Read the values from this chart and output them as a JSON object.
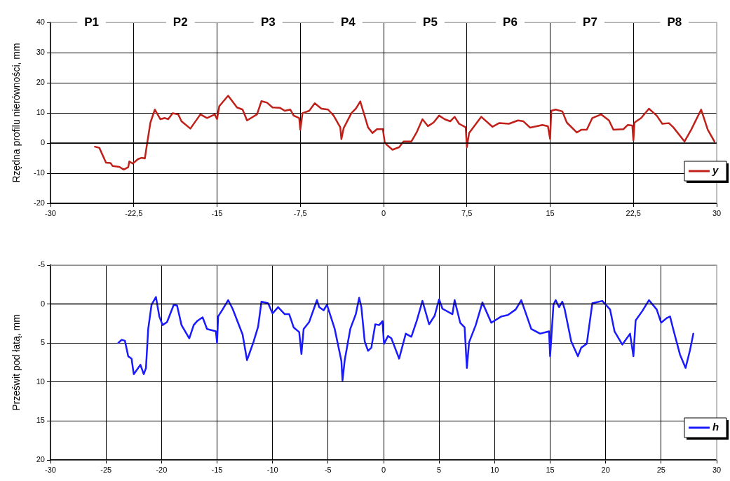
{
  "chart_data": [
    {
      "type": "line",
      "ylabel": "Rzędna profilu nierówności, mm",
      "xlim": [
        -30,
        30
      ],
      "ylim": [
        -20,
        40
      ],
      "xticks": [
        -30,
        {
          "value": -22.5,
          "label": "-22,5"
        },
        -15,
        {
          "value": -7.5,
          "label": "-7,5"
        },
        0,
        {
          "value": 7.5,
          "label": "7,5"
        },
        15,
        {
          "value": 22.5,
          "label": "22,5"
        },
        30
      ],
      "yticks": [
        -20,
        -10,
        0,
        10,
        20,
        30,
        40
      ],
      "grid": true,
      "legend": "bottom right",
      "marker": "none",
      "line_style": "solid",
      "ref_lines": [
        {
          "axis": "y",
          "value": 0,
          "color": "#000000"
        }
      ],
      "annotations": [
        {
          "text": "P1",
          "x": -26.3,
          "y": 40
        },
        {
          "text": "P2",
          "x": -18.3,
          "y": 40
        },
        {
          "text": "P3",
          "x": -10.4,
          "y": 40
        },
        {
          "text": "P4",
          "x": -3.2,
          "y": 40
        },
        {
          "text": "P5",
          "x": 4.2,
          "y": 40
        },
        {
          "text": "P6",
          "x": 11.4,
          "y": 40
        },
        {
          "text": "P7",
          "x": 18.6,
          "y": 40
        },
        {
          "text": "P8",
          "x": 26.2,
          "y": 40
        }
      ],
      "series": [
        {
          "name": "y",
          "color": "#c0201a",
          "x": [
            -26.0,
            -25.6,
            -25.0,
            -24.6,
            -24.4,
            -23.8,
            -23.4,
            -23.0,
            -22.9,
            -22.6,
            -22.1,
            -21.8,
            -21.5,
            -21.3,
            -21.0,
            -20.6,
            -20.1,
            -19.7,
            -19.4,
            -19.0,
            -18.5,
            -18.2,
            -17.4,
            -16.5,
            -15.9,
            -15.2,
            -15.0,
            -14.8,
            -14.0,
            -13.2,
            -12.7,
            -12.3,
            -11.4,
            -11.0,
            -10.5,
            -10.0,
            -9.35,
            -8.9,
            -8.4,
            -8.1,
            -7.6,
            -7.5,
            -7.3,
            -6.7,
            -6.2,
            -5.6,
            -5.0,
            -4.5,
            -3.9,
            -3.8,
            -3.6,
            -2.9,
            -2.5,
            -2.1,
            -1.4,
            -1.0,
            -0.6,
            -0.06,
            0.1,
            0.3,
            0.8,
            1.4,
            1.8,
            2.5,
            3.0,
            3.5,
            4.0,
            4.5,
            5.0,
            5.5,
            6.0,
            6.4,
            6.8,
            7.4,
            7.5,
            7.7,
            8.8,
            9.8,
            10.4,
            11.3,
            12.1,
            12.6,
            13.2,
            13.8,
            14.3,
            14.8,
            15.0,
            15.1,
            15.5,
            16.1,
            16.5,
            17.4,
            17.8,
            18.3,
            18.8,
            19.6,
            20.3,
            20.7,
            21.6,
            22.0,
            22.4,
            22.5,
            22.6,
            23.2,
            23.9,
            24.6,
            25.1,
            25.7,
            26.1,
            27.1,
            27.7,
            28.6,
            29.2,
            29.8
          ],
          "values": [
            -1.2,
            -1.6,
            -6.5,
            -6.6,
            -7.6,
            -7.9,
            -8.8,
            -8.0,
            -6.1,
            -6.8,
            -5.3,
            -4.9,
            -5.1,
            -0.2,
            6.8,
            11.1,
            7.9,
            8.3,
            7.9,
            9.9,
            9.5,
            7.2,
            4.8,
            9.5,
            8.3,
            9.5,
            7.9,
            12.2,
            15.7,
            11.8,
            11.1,
            7.5,
            9.5,
            13.9,
            13.4,
            11.8,
            11.7,
            10.7,
            11.1,
            9.1,
            8.3,
            4.4,
            9.9,
            10.7,
            13.2,
            11.4,
            11.1,
            9.1,
            5.2,
            1.3,
            4.9,
            9.9,
            11.4,
            13.8,
            5.2,
            3.3,
            4.6,
            4.6,
            0.2,
            -0.6,
            -2.2,
            -1.4,
            0.5,
            0.5,
            3.7,
            7.9,
            5.6,
            6.8,
            9.1,
            7.9,
            7.2,
            8.7,
            6.4,
            5.2,
            -1.4,
            3.3,
            8.7,
            5.4,
            6.6,
            6.4,
            7.5,
            7.2,
            5.1,
            5.6,
            6.0,
            5.6,
            1.3,
            10.7,
            11.1,
            10.5,
            6.8,
            3.5,
            4.4,
            4.4,
            8.3,
            9.5,
            7.5,
            4.4,
            4.6,
            6.0,
            5.8,
            0.9,
            6.8,
            8.3,
            11.4,
            9.1,
            6.4,
            6.6,
            5.2,
            0.5,
            4.4,
            11.1,
            4.4,
            0.5
          ]
        }
      ]
    },
    {
      "type": "line",
      "ylabel": "Prześwit pod łatą, mm",
      "xlim": [
        -30,
        30
      ],
      "ylim": [
        20,
        -5
      ],
      "xticks": [
        -30,
        -25,
        -20,
        -15,
        -10,
        -5,
        0,
        5,
        10,
        15,
        20,
        25,
        30
      ],
      "yticks": [
        -5,
        0,
        5,
        10,
        15,
        20
      ],
      "grid": true,
      "legend": "bottom right",
      "marker": "none",
      "line_style": "solid",
      "ref_lines": [
        {
          "axis": "y",
          "value": 0,
          "color": "#000000"
        }
      ],
      "series": [
        {
          "name": "h",
          "color": "#1a1aff",
          "x": [
            -23.9,
            -23.6,
            -23.3,
            -23.0,
            -22.7,
            -22.5,
            -22.2,
            -21.9,
            -21.6,
            -21.4,
            -21.2,
            -20.9,
            -20.5,
            -20.2,
            -19.9,
            -19.5,
            -18.9,
            -18.6,
            -18.2,
            -17.5,
            -17.1,
            -16.8,
            -16.3,
            -15.9,
            -15.1,
            -15.0,
            -14.9,
            -14.5,
            -14.0,
            -13.6,
            -12.7,
            -12.3,
            -11.7,
            -11.3,
            -11.0,
            -10.4,
            -10.0,
            -9.5,
            -8.9,
            -8.5,
            -8.1,
            -7.6,
            -7.4,
            -7.2,
            -6.7,
            -6.0,
            -5.8,
            -5.4,
            -5.1,
            -4.4,
            -3.8,
            -3.7,
            -3.5,
            -3.0,
            -2.5,
            -2.2,
            -2.0,
            -1.7,
            -1.4,
            -1.1,
            -0.75,
            -0.4,
            -0.1,
            0.04,
            0.4,
            0.7,
            1.4,
            2.0,
            2.5,
            3.0,
            3.5,
            4.1,
            4.6,
            5.0,
            5.3,
            6.2,
            6.4,
            6.9,
            7.3,
            7.5,
            7.7,
            8.3,
            8.9,
            9.7,
            10.6,
            11.2,
            11.9,
            12.4,
            13.3,
            14.1,
            14.9,
            15.0,
            15.3,
            15.5,
            15.8,
            16.1,
            16.3,
            16.9,
            17.5,
            17.8,
            18.3,
            18.8,
            19.7,
            20.4,
            20.8,
            21.5,
            22.2,
            22.5,
            22.7,
            23.3,
            23.9,
            24.6,
            25.0,
            25.5,
            25.8,
            26.1,
            26.7,
            27.2,
            27.6,
            27.9
          ],
          "values": [
            5.0,
            4.6,
            4.7,
            6.7,
            7.0,
            9.0,
            8.4,
            7.8,
            9.0,
            8.2,
            3.2,
            0.1,
            -0.9,
            1.6,
            2.7,
            2.3,
            0.1,
            0.2,
            2.7,
            4.4,
            2.7,
            2.2,
            1.7,
            3.2,
            3.5,
            5.0,
            1.6,
            0.7,
            -0.5,
            0.6,
            3.9,
            7.2,
            4.8,
            2.9,
            -0.3,
            -0.1,
            1.2,
            0.4,
            1.3,
            1.3,
            3.0,
            3.6,
            6.4,
            3.2,
            2.3,
            -0.5,
            0.4,
            0.8,
            0.1,
            3.2,
            7.3,
            9.8,
            7.2,
            3.2,
            1.3,
            -0.8,
            0.4,
            4.8,
            6.0,
            5.6,
            2.6,
            2.7,
            2.2,
            5.1,
            4.1,
            4.4,
            7.0,
            3.8,
            4.2,
            2.1,
            -0.4,
            2.6,
            1.5,
            -0.6,
            0.6,
            1.3,
            -0.5,
            2.4,
            3.0,
            8.2,
            4.9,
            2.7,
            -0.2,
            2.4,
            1.6,
            1.4,
            0.7,
            -0.5,
            3.2,
            3.8,
            3.5,
            6.7,
            0.1,
            -0.5,
            0.4,
            -0.3,
            0.6,
            4.8,
            6.7,
            5.6,
            5.1,
            -0.1,
            -0.4,
            0.7,
            3.5,
            5.2,
            3.8,
            6.7,
            2.1,
            0.9,
            -0.5,
            0.7,
            2.4,
            1.8,
            1.6,
            3.3,
            6.5,
            8.2,
            5.9,
            3.8
          ]
        }
      ]
    }
  ]
}
